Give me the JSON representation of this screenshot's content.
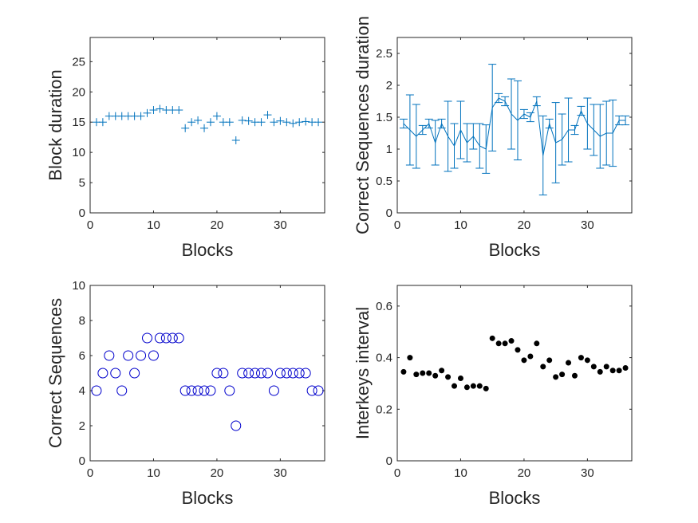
{
  "chart_data": [
    {
      "type": "scatter",
      "marker": "plus",
      "color": "#0072BD",
      "xlabel": "Blocks",
      "ylabel": "Block duration",
      "xlim": [
        0,
        37
      ],
      "ylim": [
        0,
        29
      ],
      "xticks": [
        0,
        10,
        20,
        30
      ],
      "yticks": [
        0,
        5,
        10,
        15,
        20,
        25
      ],
      "grid": false,
      "x": [
        1,
        2,
        3,
        4,
        5,
        6,
        7,
        8,
        9,
        10,
        11,
        12,
        13,
        14,
        15,
        16,
        17,
        18,
        19,
        20,
        21,
        22,
        23,
        24,
        25,
        26,
        27,
        28,
        29,
        30,
        31,
        32,
        33,
        34,
        35,
        36
      ],
      "values": [
        15,
        15,
        16,
        16,
        16,
        16,
        16,
        16,
        16.5,
        17,
        17.2,
        17,
        17,
        17,
        14,
        15,
        15.3,
        14,
        15,
        16,
        15,
        15,
        12,
        15.3,
        15.2,
        15,
        15,
        16.2,
        15,
        15.2,
        15,
        14.8,
        15,
        15.1,
        15,
        15
      ]
    },
    {
      "type": "line",
      "error_bars": true,
      "color": "#0072BD",
      "xlabel": "Blocks",
      "ylabel": "Correct Sequences duration",
      "xlim": [
        0,
        37
      ],
      "ylim": [
        0,
        2.75
      ],
      "xticks": [
        0,
        10,
        20,
        30
      ],
      "yticks": [
        0,
        0.5,
        1,
        1.5,
        2,
        2.5
      ],
      "grid": false,
      "x": [
        1,
        2,
        3,
        4,
        5,
        6,
        7,
        8,
        9,
        10,
        11,
        12,
        13,
        14,
        15,
        16,
        17,
        18,
        19,
        20,
        21,
        22,
        23,
        24,
        25,
        26,
        27,
        28,
        29,
        30,
        31,
        32,
        33,
        34,
        35,
        36
      ],
      "values": [
        1.4,
        1.3,
        1.2,
        1.3,
        1.4,
        1.1,
        1.4,
        1.2,
        1.05,
        1.3,
        1.1,
        1.2,
        1.05,
        1.0,
        1.65,
        1.8,
        1.75,
        1.55,
        1.45,
        1.55,
        1.5,
        1.75,
        0.9,
        1.4,
        1.1,
        1.15,
        1.3,
        1.3,
        1.6,
        1.4,
        1.3,
        1.2,
        1.25,
        1.25,
        1.45,
        1.45
      ],
      "errors": [
        0.07,
        0.55,
        0.5,
        0.07,
        0.07,
        0.35,
        0.07,
        0.55,
        0.35,
        0.45,
        0.3,
        0.2,
        0.35,
        0.38,
        0.68,
        0.07,
        0.07,
        0.55,
        0.62,
        0.07,
        0.07,
        0.07,
        0.62,
        0.07,
        0.63,
        0.4,
        0.5,
        0.07,
        0.07,
        0.4,
        0.4,
        0.5,
        0.5,
        0.52,
        0.07,
        0.07
      ]
    },
    {
      "type": "scatter",
      "marker": "circle",
      "color": "#0000CC",
      "xlabel": "Blocks",
      "ylabel": "Correct Sequences",
      "xlim": [
        0,
        37
      ],
      "ylim": [
        0,
        10
      ],
      "xticks": [
        0,
        10,
        20,
        30
      ],
      "yticks": [
        0,
        2,
        4,
        6,
        8,
        10
      ],
      "grid": false,
      "x": [
        1,
        2,
        3,
        4,
        5,
        6,
        7,
        8,
        9,
        10,
        11,
        12,
        13,
        14,
        15,
        16,
        17,
        18,
        19,
        20,
        21,
        22,
        23,
        24,
        25,
        26,
        27,
        28,
        29,
        30,
        31,
        32,
        33,
        34,
        35,
        36
      ],
      "values": [
        4,
        5,
        6,
        5,
        4,
        6,
        5,
        6,
        7,
        6,
        7,
        7,
        7,
        7,
        4,
        4,
        4,
        4,
        4,
        5,
        5,
        4,
        2,
        5,
        5,
        5,
        5,
        5,
        4,
        5,
        5,
        5,
        5,
        5,
        4,
        4
      ]
    },
    {
      "type": "scatter",
      "marker": "dot",
      "color": "#000000",
      "xlabel": "Blocks",
      "ylabel": "Interkeys interval",
      "xlim": [
        0,
        37
      ],
      "ylim": [
        0,
        0.68
      ],
      "xticks": [
        0,
        10,
        20,
        30
      ],
      "yticks": [
        0,
        0.2,
        0.4,
        0.6
      ],
      "grid": false,
      "x": [
        1,
        2,
        3,
        4,
        5,
        6,
        7,
        8,
        9,
        10,
        11,
        12,
        13,
        14,
        15,
        16,
        17,
        18,
        19,
        20,
        21,
        22,
        23,
        24,
        25,
        26,
        27,
        28,
        29,
        30,
        31,
        32,
        33,
        34,
        35,
        36
      ],
      "values": [
        0.345,
        0.4,
        0.335,
        0.34,
        0.34,
        0.33,
        0.35,
        0.325,
        0.29,
        0.32,
        0.285,
        0.29,
        0.29,
        0.28,
        0.475,
        0.455,
        0.455,
        0.465,
        0.43,
        0.39,
        0.405,
        0.455,
        0.365,
        0.39,
        0.325,
        0.335,
        0.38,
        0.33,
        0.4,
        0.39,
        0.365,
        0.345,
        0.365,
        0.35,
        0.35,
        0.36
      ]
    }
  ]
}
